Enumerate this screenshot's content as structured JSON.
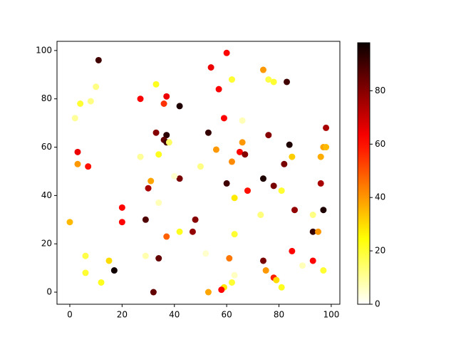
{
  "chart_data": {
    "type": "scatter",
    "x": [
      11,
      60,
      54,
      33,
      10,
      36,
      27,
      37,
      42,
      4,
      8,
      2,
      57,
      62,
      74,
      76,
      78,
      83,
      59,
      66,
      33,
      37,
      36,
      37,
      38,
      53,
      76,
      84,
      98,
      3,
      56,
      66,
      65,
      67,
      85,
      97,
      98,
      96,
      27,
      34,
      82,
      3,
      7,
      62,
      50,
      42,
      40,
      31,
      74,
      60,
      96,
      30,
      68,
      78,
      81,
      63,
      34,
      86,
      97,
      20,
      73,
      93,
      20,
      29,
      48,
      0,
      42,
      47,
      63,
      93,
      95,
      37,
      85,
      29,
      6,
      52,
      34,
      61,
      15,
      93,
      74,
      17,
      6,
      75,
      97,
      89,
      78,
      79,
      63,
      12,
      62,
      59,
      58,
      81,
      53,
      32
    ],
    "y": [
      96,
      99,
      93,
      86,
      85,
      78,
      80,
      81,
      77,
      78,
      79,
      72,
      84,
      88,
      92,
      88,
      87,
      87,
      72,
      71,
      66,
      65,
      63,
      62,
      62,
      66,
      65,
      61,
      68,
      58,
      59,
      62,
      58,
      57,
      56,
      60,
      60,
      56,
      56,
      57,
      53,
      53,
      52,
      54,
      52,
      47,
      48,
      46,
      47,
      45,
      45,
      43,
      42,
      44,
      42,
      39,
      37,
      34,
      34,
      35,
      32,
      32,
      29,
      30,
      30,
      29,
      25,
      25,
      24,
      25,
      25,
      23,
      17,
      15,
      15,
      16,
      14,
      14,
      13,
      13,
      13,
      9,
      8,
      9,
      9,
      11,
      6,
      5,
      7,
      4,
      4,
      2,
      1,
      2,
      0,
      0
    ],
    "color_values": [
      90,
      62,
      65,
      22,
      12,
      55,
      63,
      65,
      95,
      20,
      12,
      10,
      63,
      20,
      40,
      18,
      20,
      90,
      62,
      7,
      80,
      93,
      85,
      90,
      15,
      92,
      80,
      95,
      75,
      65,
      40,
      40,
      62,
      80,
      32,
      38,
      35,
      37,
      10,
      22,
      82,
      40,
      60,
      42,
      12,
      82,
      5,
      38,
      95,
      90,
      75,
      75,
      60,
      82,
      20,
      28,
      7,
      78,
      95,
      62,
      13,
      12,
      62,
      88,
      80,
      35,
      22,
      78,
      20,
      92,
      40,
      48,
      62,
      8,
      18,
      5,
      85,
      45,
      30,
      62,
      82,
      97,
      20,
      40,
      20,
      7,
      58,
      30,
      6,
      22,
      20,
      28,
      62,
      22,
      38,
      85
    ],
    "colormap": "hot_r",
    "clim": [
      0,
      98
    ],
    "colorbar_ticks": [
      0,
      20,
      40,
      60,
      80
    ],
    "xlim": [
      -4.9,
      103.3
    ],
    "xticks": [
      0,
      20,
      40,
      60,
      80,
      100
    ],
    "ylim": [
      -5,
      103.8
    ],
    "yticks": [
      0,
      20,
      40,
      60,
      80,
      100
    ]
  }
}
